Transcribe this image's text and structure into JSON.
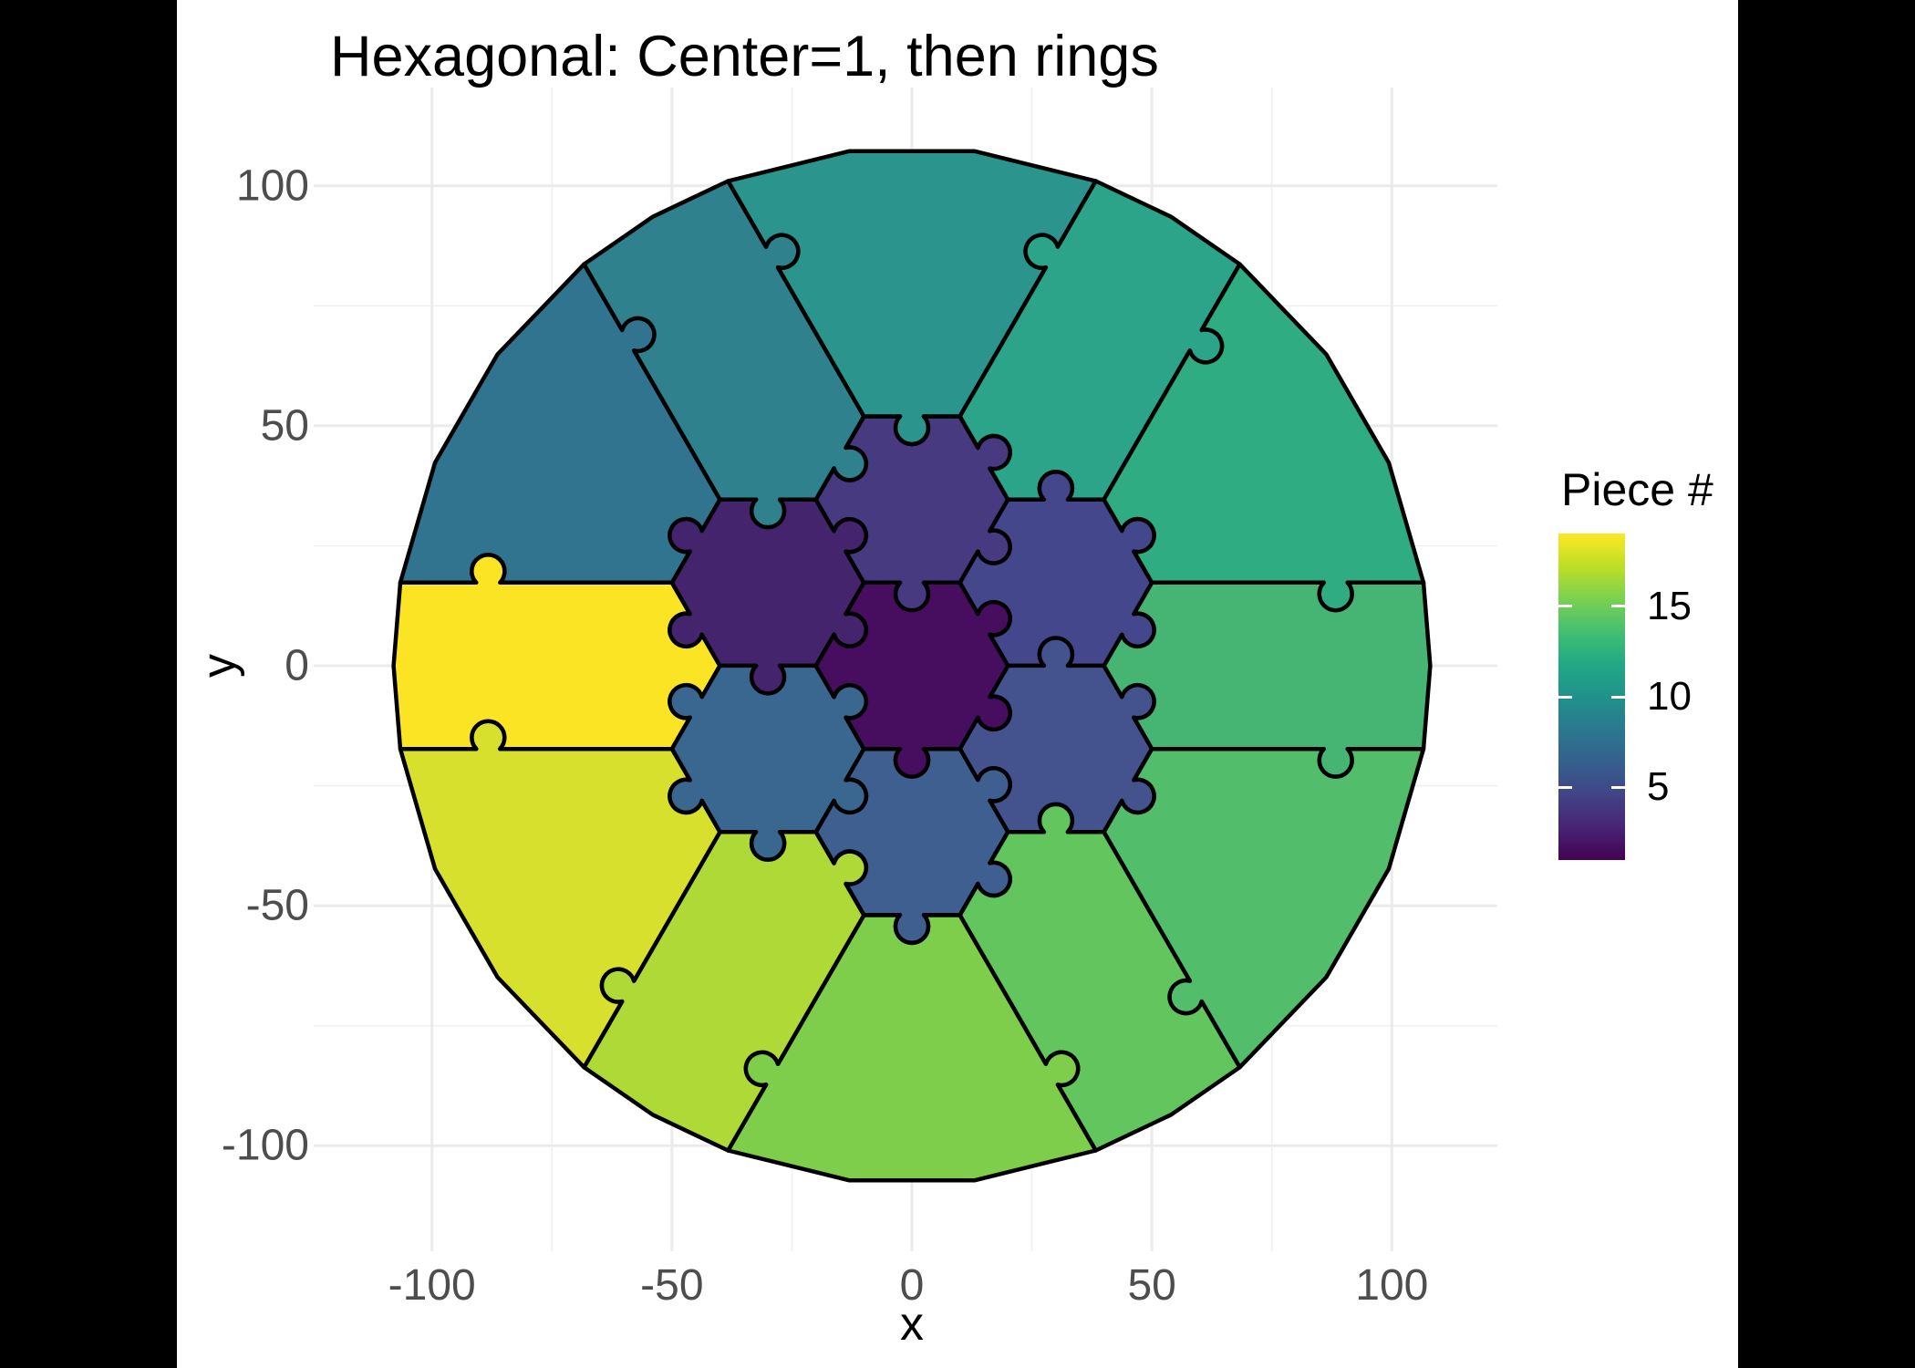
{
  "figure": {
    "title": "Hexagonal: Center=1, then rings",
    "background_color": "#FFFFFF",
    "matte_color": "#000000",
    "x_axis": {
      "title": "x",
      "tick_labels": [
        "-100",
        "-50",
        "0",
        "50",
        "100"
      ],
      "tick_values": [
        -100,
        -50,
        0,
        50,
        100
      ],
      "tick_color": "#4D4D4D"
    },
    "y_axis": {
      "title": "y",
      "tick_labels": [
        "100",
        "50",
        "0",
        "-50",
        "-100"
      ],
      "tick_values": [
        100,
        50,
        0,
        -50,
        -100
      ],
      "tick_color": "#4D4D4D"
    },
    "legend": {
      "title": "Piece #",
      "tick_labels": [
        "15",
        "10",
        "5"
      ],
      "tick_values": [
        15,
        10,
        5
      ],
      "bar_domain": [
        1,
        19
      ],
      "viridis_stops": [
        "#440154",
        "#482475",
        "#414487",
        "#35608D",
        "#2A788E",
        "#21918C",
        "#22A884",
        "#44BF70",
        "#7AD151",
        "#BDDF26",
        "#FDE725"
      ]
    }
  },
  "chart_data": {
    "type": "other",
    "subtype": "jigsaw-puzzle polygon map (filled hexagonal tiling clipped to circle)",
    "title": "Hexagonal: Center=1, then rings",
    "xlabel": "x",
    "ylabel": "y",
    "xlim": [
      -124,
      122
    ],
    "ylim": [
      -122,
      120.5
    ],
    "grid": {
      "major_breaks": [
        -100,
        -50,
        0,
        50,
        100
      ],
      "minor_breaks": [
        -75,
        -25,
        25,
        75
      ],
      "major_color": "#EBEBEB",
      "minor_color": "#F0F0F0"
    },
    "color_scale": {
      "name": "viridis",
      "variable": "Piece #",
      "domain": [
        1,
        19
      ],
      "legend_breaks": [
        5,
        10,
        15
      ]
    },
    "geometry": {
      "hex_circumradius": 20,
      "puzzle_circle_radius": 108,
      "ring_piece_counts": [
        1,
        6,
        12
      ],
      "stroke_color": "#000000"
    },
    "pieces": [
      {
        "id": 1,
        "ring": 0,
        "position": "center",
        "shape": "hex",
        "rot": 0,
        "center": [
          0,
          0
        ],
        "color": "#470D5F"
      },
      {
        "id": 2,
        "ring": 1,
        "position": "NW",
        "shape": "hex",
        "rot": 1,
        "center": [
          -30,
          17.3
        ],
        "color": "#44246C"
      },
      {
        "id": 3,
        "ring": 1,
        "position": "N",
        "shape": "hex",
        "rot": 0,
        "center": [
          0,
          34.6
        ],
        "color": "#473A80"
      },
      {
        "id": 4,
        "ring": 1,
        "position": "NE",
        "shape": "hex",
        "rot": 5,
        "center": [
          30,
          17.3
        ],
        "color": "#45478C"
      },
      {
        "id": 5,
        "ring": 1,
        "position": "SE",
        "shape": "hex",
        "rot": 4,
        "center": [
          30,
          -17.3
        ],
        "color": "#44538E"
      },
      {
        "id": 6,
        "ring": 1,
        "position": "S",
        "shape": "hex",
        "rot": 3,
        "center": [
          0,
          -34.6
        ],
        "color": "#3E5F90"
      },
      {
        "id": 7,
        "ring": 1,
        "position": "SW",
        "shape": "hex",
        "rot": 2,
        "center": [
          -30,
          -17.3
        ],
        "color": "#39678F"
      },
      {
        "id": 8,
        "ring": 2,
        "position": "150deg",
        "shape": "wedge2",
        "rot": 1,
        "center": [
          -60,
          34.6
        ],
        "color": "#30748F"
      },
      {
        "id": 9,
        "ring": 2,
        "position": "120deg",
        "shape": "wedgeSum",
        "rot": 1,
        "center": [
          -30,
          52
        ],
        "color": "#2E818D"
      },
      {
        "id": 10,
        "ring": 2,
        "position": "90deg",
        "shape": "wedge2",
        "rot": 0,
        "center": [
          0,
          69.3
        ],
        "color": "#2A948D"
      },
      {
        "id": 11,
        "ring": 2,
        "position": "60deg",
        "shape": "wedgeSum",
        "rot": 0,
        "center": [
          30,
          52
        ],
        "color": "#2BA489"
      },
      {
        "id": 12,
        "ring": 2,
        "position": "30deg",
        "shape": "wedge2",
        "rot": 5,
        "center": [
          60,
          34.6
        ],
        "color": "#2FAC81"
      },
      {
        "id": 13,
        "ring": 2,
        "position": "0deg",
        "shape": "wedgeSum",
        "rot": 5,
        "center": [
          60,
          0
        ],
        "color": "#46B573"
      },
      {
        "id": 14,
        "ring": 2,
        "position": "-30deg",
        "shape": "wedge2",
        "rot": 4,
        "center": [
          60,
          -34.6
        ],
        "color": "#52BE6B"
      },
      {
        "id": 15,
        "ring": 2,
        "position": "-60deg",
        "shape": "wedgeSum",
        "rot": 4,
        "center": [
          30,
          -52
        ],
        "color": "#63C55D"
      },
      {
        "id": 16,
        "ring": 2,
        "position": "-90deg",
        "shape": "wedge2",
        "rot": 3,
        "center": [
          0,
          -69.3
        ],
        "color": "#7ECE4B"
      },
      {
        "id": 17,
        "ring": 2,
        "position": "-120deg",
        "shape": "wedgeSum",
        "rot": 3,
        "center": [
          -30,
          -52
        ],
        "color": "#AED936"
      },
      {
        "id": 18,
        "ring": 2,
        "position": "-150deg",
        "shape": "wedge2",
        "rot": 2,
        "center": [
          -60,
          -34.6
        ],
        "color": "#D7E02C"
      },
      {
        "id": 19,
        "ring": 2,
        "position": "180deg",
        "shape": "wedgeSum",
        "rot": 2,
        "center": [
          -60,
          0
        ],
        "color": "#FBE423"
      }
    ]
  }
}
